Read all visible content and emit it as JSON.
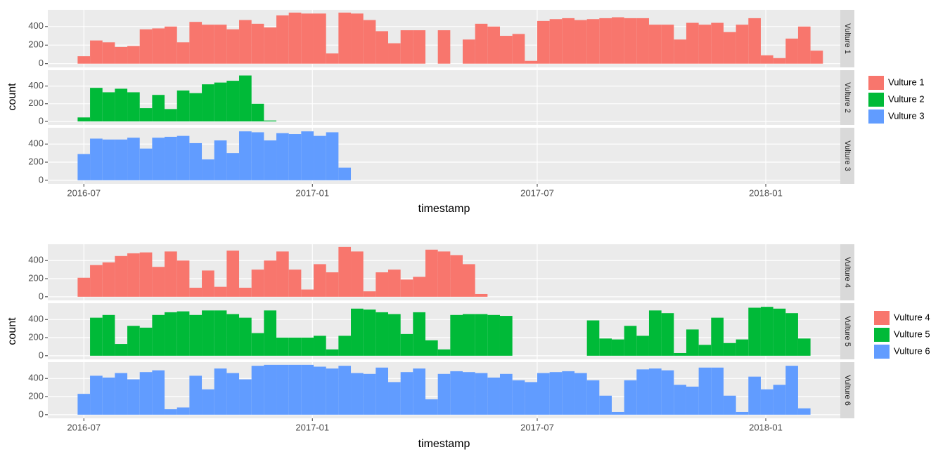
{
  "chart_data": [
    {
      "type": "histogram",
      "xlabel": "timestamp",
      "ylabel": "count",
      "xlim": [
        "2016-06-02",
        "2018-03-02"
      ],
      "xticks": [
        "2016-07",
        "2017-01",
        "2017-07",
        "2018-01"
      ],
      "ylim": [
        -40,
        580
      ],
      "yticks": [
        0,
        200,
        400
      ],
      "grid": true,
      "legend": "right",
      "bins": [
        "2016-06-26",
        "2016-07-06",
        "2016-07-16",
        "2016-07-26",
        "2016-08-05",
        "2016-08-15",
        "2016-08-25",
        "2016-09-04",
        "2016-09-14",
        "2016-09-24",
        "2016-10-04",
        "2016-10-14",
        "2016-10-24",
        "2016-11-03",
        "2016-11-13",
        "2016-11-23",
        "2016-12-03",
        "2016-12-13",
        "2016-12-23",
        "2017-01-02",
        "2017-01-12",
        "2017-01-22",
        "2017-02-01",
        "2017-02-11",
        "2017-02-21",
        "2017-03-03",
        "2017-03-13",
        "2017-03-23",
        "2017-04-02",
        "2017-04-12",
        "2017-04-22",
        "2017-05-02",
        "2017-05-12",
        "2017-05-22",
        "2017-06-01",
        "2017-06-11",
        "2017-06-21",
        "2017-07-01",
        "2017-07-11",
        "2017-07-21",
        "2017-07-31",
        "2017-08-10",
        "2017-08-20",
        "2017-08-30",
        "2017-09-09",
        "2017-09-19",
        "2017-09-29",
        "2017-10-09",
        "2017-10-19",
        "2017-10-29",
        "2017-11-08",
        "2017-11-18",
        "2017-11-28",
        "2017-12-08",
        "2017-12-18",
        "2017-12-28",
        "2018-01-07",
        "2018-01-17",
        "2018-01-27",
        "2018-02-06",
        "2018-02-16"
      ],
      "series": [
        {
          "name": "Vulture 1",
          "color": "#F8766D",
          "values": [
            80,
            250,
            230,
            180,
            190,
            370,
            380,
            400,
            230,
            450,
            420,
            420,
            370,
            470,
            430,
            390,
            520,
            550,
            540,
            540,
            110,
            550,
            540,
            470,
            350,
            220,
            360,
            360,
            0,
            360,
            0,
            260,
            430,
            400,
            300,
            320,
            30,
            460,
            480,
            490,
            470,
            480,
            490,
            500,
            490,
            490,
            420,
            420,
            260,
            440,
            420,
            440,
            340,
            420,
            490,
            90,
            60,
            270,
            400,
            140
          ]
        },
        {
          "name": "Vulture 2",
          "color": "#00BA38",
          "values": [
            45,
            380,
            330,
            370,
            330,
            150,
            300,
            140,
            350,
            320,
            420,
            440,
            460,
            520,
            200,
            10,
            0,
            0,
            0,
            0,
            0,
            0,
            0,
            0,
            0,
            0,
            0,
            0,
            0,
            0,
            0,
            0,
            0,
            0,
            0,
            0,
            0,
            0,
            0,
            0,
            0,
            0,
            0,
            0,
            0,
            0,
            0,
            0,
            0,
            0,
            0,
            0,
            0,
            0,
            0,
            0,
            0,
            0,
            0,
            0
          ]
        },
        {
          "name": "Vulture 3",
          "color": "#619CFF",
          "values": [
            290,
            460,
            450,
            450,
            470,
            350,
            470,
            480,
            490,
            410,
            230,
            440,
            300,
            540,
            530,
            440,
            520,
            510,
            540,
            490,
            530,
            140,
            0,
            0,
            0,
            0,
            0,
            0,
            0,
            0,
            0,
            0,
            0,
            0,
            0,
            0,
            0,
            0,
            0,
            0,
            0,
            0,
            0,
            0,
            0,
            0,
            0,
            0,
            0,
            0,
            0,
            0,
            0,
            0,
            0,
            0,
            0,
            0,
            0,
            0
          ]
        }
      ]
    },
    {
      "type": "histogram",
      "xlabel": "timestamp",
      "ylabel": "count",
      "xlim": [
        "2016-06-02",
        "2018-03-02"
      ],
      "xticks": [
        "2016-07",
        "2017-01",
        "2017-07",
        "2018-01"
      ],
      "ylim": [
        -40,
        580
      ],
      "yticks": [
        0,
        200,
        400
      ],
      "grid": true,
      "legend": "right",
      "bins": [
        "2016-06-26",
        "2016-07-06",
        "2016-07-16",
        "2016-07-26",
        "2016-08-05",
        "2016-08-15",
        "2016-08-25",
        "2016-09-04",
        "2016-09-14",
        "2016-09-24",
        "2016-10-04",
        "2016-10-14",
        "2016-10-24",
        "2016-11-03",
        "2016-11-13",
        "2016-11-23",
        "2016-12-03",
        "2016-12-13",
        "2016-12-23",
        "2017-01-02",
        "2017-01-12",
        "2017-01-22",
        "2017-02-01",
        "2017-02-11",
        "2017-02-21",
        "2017-03-03",
        "2017-03-13",
        "2017-03-23",
        "2017-04-02",
        "2017-04-12",
        "2017-04-22",
        "2017-05-02",
        "2017-05-12",
        "2017-05-22",
        "2017-06-01",
        "2017-06-11",
        "2017-06-21",
        "2017-07-01",
        "2017-07-11",
        "2017-07-21",
        "2017-07-31",
        "2017-08-10",
        "2017-08-20",
        "2017-08-30",
        "2017-09-09",
        "2017-09-19",
        "2017-09-29",
        "2017-10-09",
        "2017-10-19",
        "2017-10-29",
        "2017-11-08",
        "2017-11-18",
        "2017-11-28",
        "2017-12-08",
        "2017-12-18",
        "2017-12-28",
        "2018-01-07",
        "2018-01-17",
        "2018-01-27",
        "2018-02-06",
        "2018-02-16"
      ],
      "series": [
        {
          "name": "Vulture 4",
          "color": "#F8766D",
          "values": [
            210,
            350,
            380,
            450,
            480,
            490,
            330,
            500,
            400,
            100,
            290,
            110,
            510,
            100,
            300,
            400,
            500,
            300,
            80,
            360,
            270,
            550,
            500,
            60,
            270,
            300,
            190,
            220,
            520,
            500,
            460,
            360,
            30,
            0,
            0,
            0,
            0,
            0,
            0,
            0,
            0,
            0,
            0,
            0,
            0,
            0,
            0,
            0,
            0,
            0,
            0,
            0,
            0,
            0,
            0,
            0,
            0,
            0,
            0,
            0
          ]
        },
        {
          "name": "Vulture 5",
          "color": "#00BA38",
          "values": [
            0,
            420,
            450,
            130,
            330,
            310,
            450,
            480,
            490,
            450,
            500,
            500,
            460,
            420,
            250,
            500,
            200,
            200,
            200,
            220,
            70,
            220,
            520,
            510,
            480,
            460,
            240,
            480,
            170,
            70,
            450,
            460,
            460,
            450,
            440,
            0,
            0,
            0,
            0,
            0,
            0,
            390,
            190,
            180,
            330,
            220,
            500,
            470,
            30,
            290,
            120,
            420,
            140,
            180,
            530,
            540,
            520,
            470,
            190,
            0
          ]
        },
        {
          "name": "Vulture 6",
          "color": "#619CFF",
          "values": [
            230,
            430,
            410,
            460,
            390,
            470,
            490,
            60,
            80,
            430,
            280,
            510,
            460,
            390,
            540,
            550,
            550,
            550,
            550,
            530,
            510,
            540,
            460,
            450,
            520,
            360,
            470,
            510,
            170,
            450,
            480,
            470,
            460,
            410,
            450,
            380,
            360,
            460,
            470,
            480,
            460,
            380,
            210,
            30,
            380,
            500,
            510,
            490,
            330,
            310,
            520,
            520,
            210,
            30,
            420,
            280,
            330,
            540,
            70,
            0
          ]
        }
      ]
    }
  ]
}
